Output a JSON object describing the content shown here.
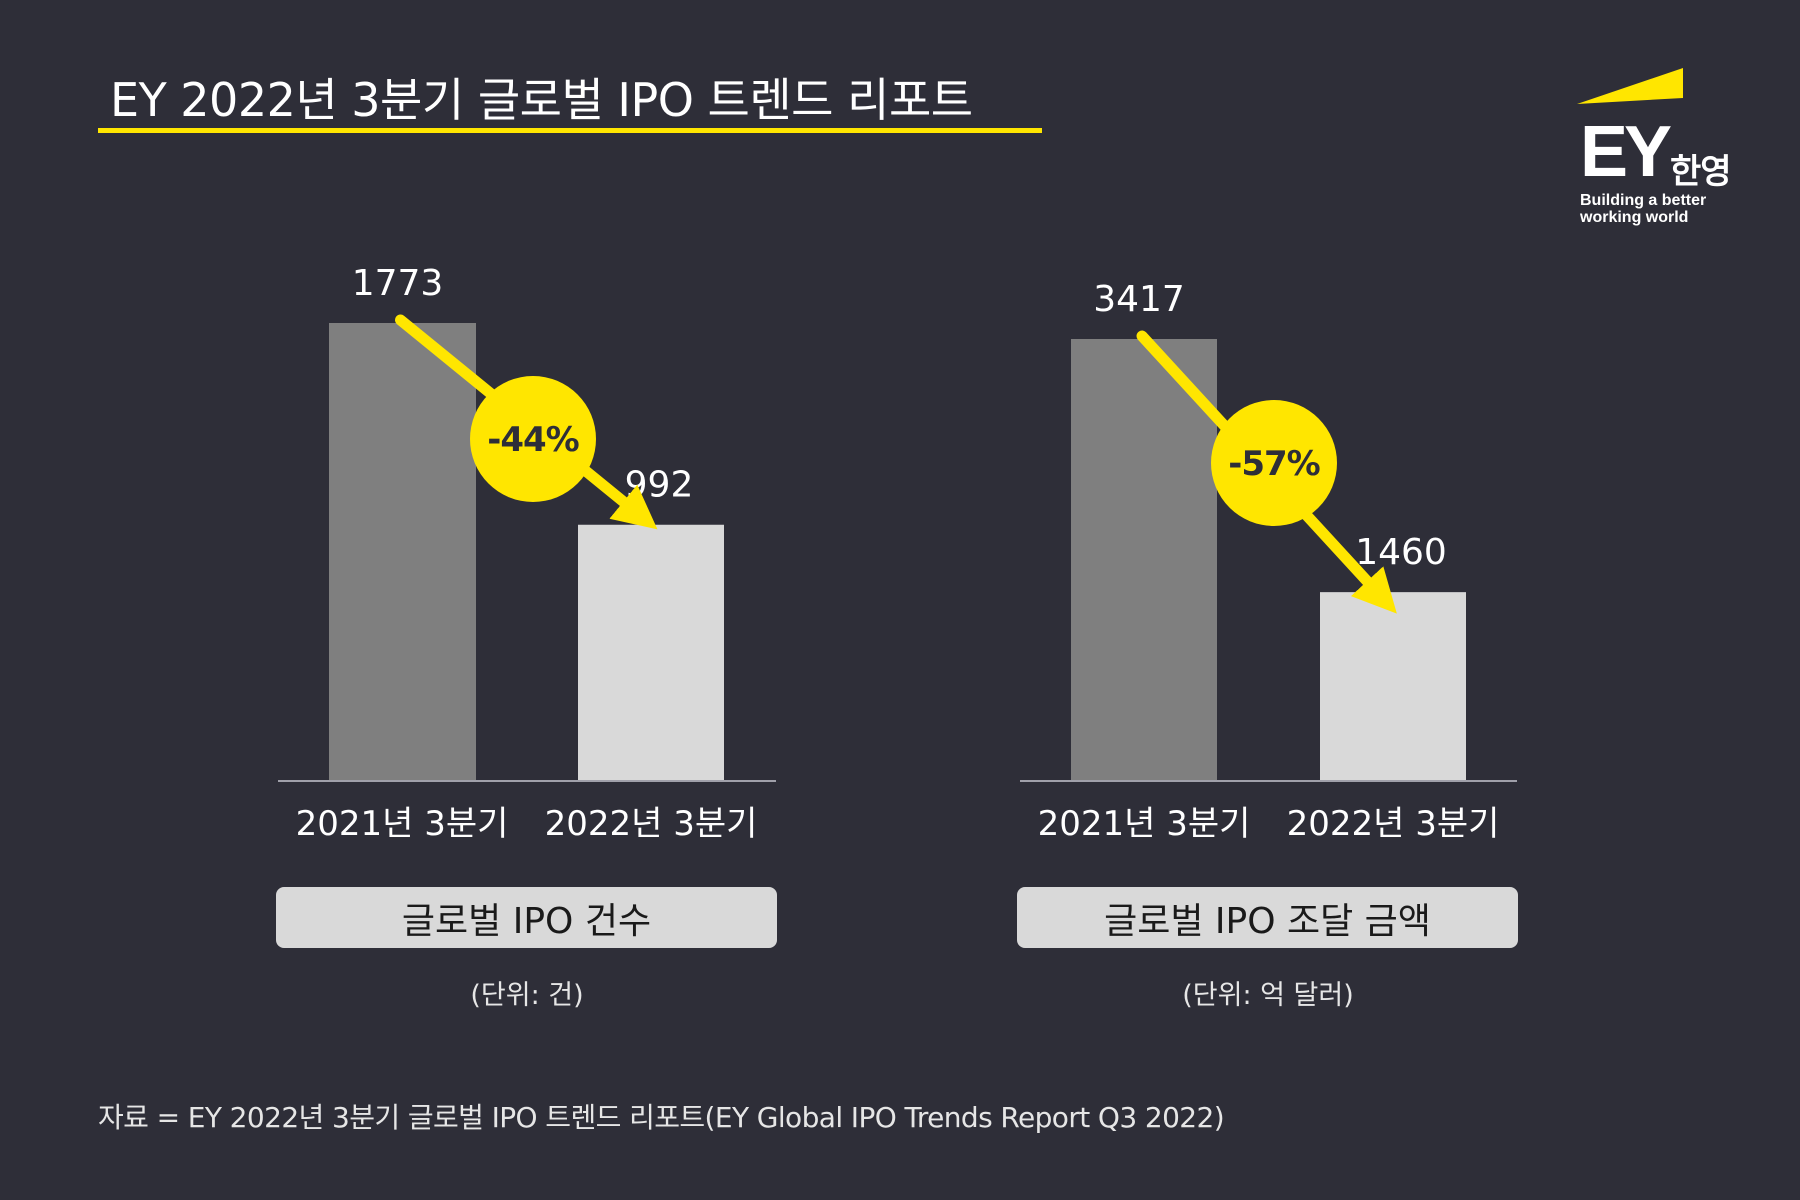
{
  "header": {
    "title": "EY 2022년 3분기 글로벌 IPO 트렌드 리포트"
  },
  "logo": {
    "brand": "EY",
    "korean": "한영",
    "tagline_line1": "Building a better",
    "tagline_line2": "working world",
    "icon": "ey-beam-logo"
  },
  "colors": {
    "background": "#2e2e38",
    "accent_yellow": "#ffe600",
    "bar_previous": "#7f7f7f",
    "bar_current": "#d9d9d9",
    "axis": "#a0a0aa"
  },
  "chart_data": [
    {
      "type": "bar",
      "title": "글로벌 IPO 건수",
      "unit_label": "(단위: 건)",
      "categories": [
        "2021년 3분기",
        "2022년 3분기"
      ],
      "values": [
        1773,
        992
      ],
      "value_labels": [
        "1773",
        "992"
      ],
      "change_label": "-44%",
      "ylim": [
        0,
        1773
      ],
      "grid": false
    },
    {
      "type": "bar",
      "title": "글로벌 IPO 조달 금액",
      "unit_label": "(단위: 억 달러)",
      "categories": [
        "2021년 3분기",
        "2022년 3분기"
      ],
      "values": [
        3417,
        1460
      ],
      "value_labels": [
        "3417",
        "1460"
      ],
      "change_label": "-57%",
      "ylim": [
        0,
        3417
      ],
      "grid": false
    }
  ],
  "footer": {
    "source": "자료 = EY 2022년 3분기 글로벌 IPO 트렌드 리포트(EY Global IPO Trends Report Q3 2022)"
  }
}
